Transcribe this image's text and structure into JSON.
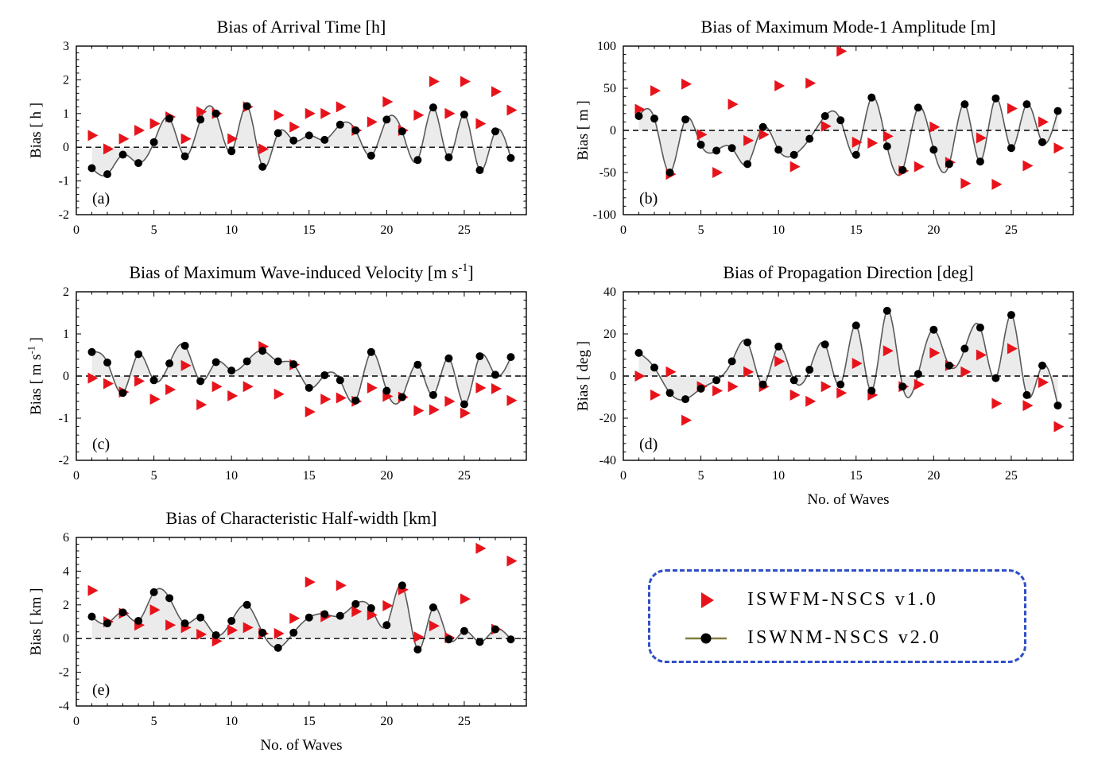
{
  "colors": {
    "v1": "#e8131a",
    "v2": "#000000",
    "curve": "#5a5a5a",
    "fill": "#ebebeb",
    "legend_border": "#2f4fc7",
    "legend_line": "#7f7f3f"
  },
  "legend": {
    "items": [
      {
        "label": "ISWFM-NSCS v1.0",
        "symbol": "red-triangle"
      },
      {
        "label": "ISWNM-NSCS v2.0",
        "symbol": "black-dot-line"
      }
    ]
  },
  "chart_data": [
    {
      "id": "a",
      "type": "scatter",
      "panel_label": "(a)",
      "title_parts": [
        {
          "t": "Bias of Arrival Time [h]"
        }
      ],
      "ylabel": "Bias [ h ]",
      "xlabel": "",
      "xlim": [
        0,
        29
      ],
      "xticks": [
        0,
        5,
        10,
        15,
        20,
        25
      ],
      "ylim": [
        -2,
        3
      ],
      "yticks": [
        -2,
        -1,
        0,
        1,
        2,
        3
      ],
      "x": [
        1,
        2,
        3,
        4,
        5,
        6,
        7,
        8,
        9,
        10,
        11,
        12,
        13,
        14,
        15,
        16,
        17,
        18,
        19,
        20,
        21,
        22,
        23,
        24,
        25,
        26,
        27,
        28
      ],
      "series": [
        {
          "name": "ISWFM-NSCS v1.0",
          "marker": "triangle",
          "values": [
            0.35,
            -0.05,
            0.25,
            0.5,
            0.7,
            0.9,
            0.25,
            1.05,
            1.0,
            0.25,
            1.2,
            -0.05,
            0.95,
            0.6,
            1.0,
            1.0,
            1.2,
            0.5,
            0.75,
            1.35,
            0.5,
            0.95,
            1.95,
            1.0,
            1.95,
            0.7,
            1.65,
            1.1
          ]
        },
        {
          "name": "ISWNM-NSCS v2.0",
          "marker": "dot",
          "values": [
            -0.62,
            -0.8,
            -0.22,
            -0.47,
            0.15,
            0.85,
            -0.27,
            0.82,
            1.0,
            -0.12,
            1.22,
            -0.58,
            0.42,
            0.2,
            0.35,
            0.22,
            0.67,
            0.5,
            -0.25,
            0.82,
            0.47,
            -0.38,
            1.18,
            -0.3,
            0.97,
            -0.68,
            0.47,
            -0.32
          ]
        }
      ]
    },
    {
      "id": "b",
      "type": "scatter",
      "panel_label": "(b)",
      "title_parts": [
        {
          "t": "Bias of Maximum Mode-1 Amplitude [m]"
        }
      ],
      "ylabel": "Bias [ m ]",
      "xlabel": "",
      "xlim": [
        0,
        29
      ],
      "xticks": [
        0,
        5,
        10,
        15,
        20,
        25
      ],
      "ylim": [
        -100,
        100
      ],
      "yticks": [
        -100,
        -50,
        0,
        50,
        100
      ],
      "x": [
        1,
        2,
        3,
        4,
        5,
        6,
        7,
        8,
        9,
        10,
        11,
        12,
        13,
        14,
        15,
        16,
        17,
        18,
        19,
        20,
        21,
        22,
        23,
        24,
        25,
        26,
        27,
        28
      ],
      "series": [
        {
          "name": "ISWFM-NSCS v1.0",
          "marker": "triangle",
          "values": [
            25,
            47,
            -52,
            55,
            -5,
            -50,
            31,
            -12,
            -5,
            53,
            -43,
            56,
            5,
            94,
            -14,
            -15,
            -7,
            -48,
            -43,
            4,
            -38,
            -63,
            -9,
            -64,
            26,
            -42,
            10,
            -21
          ]
        },
        {
          "name": "ISWNM-NSCS v2.0",
          "marker": "dot",
          "values": [
            17,
            14,
            -50,
            13,
            -17,
            -24,
            -21,
            -40,
            4,
            -23,
            -29,
            -10,
            17,
            12,
            -29,
            39,
            -19,
            -47,
            27,
            -23,
            -40,
            31,
            -37,
            38,
            -21,
            31,
            -14,
            23
          ]
        }
      ]
    },
    {
      "id": "c",
      "type": "scatter",
      "panel_label": "(c)",
      "title_parts": [
        {
          "t": "Bias of Maximum Wave-induced Velocity [m s"
        },
        {
          "t": "-1",
          "sup": true
        },
        {
          "t": "]"
        }
      ],
      "ylabel_parts": [
        {
          "t": "Bias [ m s"
        },
        {
          "t": "-1",
          "sup": true
        },
        {
          "t": " ]"
        }
      ],
      "ylabel": "",
      "xlabel": "",
      "xlim": [
        0,
        29
      ],
      "xticks": [
        0,
        5,
        10,
        15,
        20,
        25
      ],
      "ylim": [
        -2,
        2
      ],
      "yticks": [
        -2,
        -1,
        0,
        1,
        2
      ],
      "x": [
        1,
        2,
        3,
        4,
        5,
        6,
        7,
        8,
        9,
        10,
        11,
        12,
        13,
        14,
        15,
        16,
        17,
        18,
        19,
        20,
        21,
        22,
        23,
        24,
        25,
        26,
        27,
        28
      ],
      "series": [
        {
          "name": "ISWFM-NSCS v1.0",
          "marker": "triangle",
          "values": [
            -0.05,
            -0.18,
            -0.38,
            -0.12,
            -0.55,
            -0.32,
            0.25,
            -0.68,
            -0.25,
            -0.47,
            -0.25,
            0.7,
            -0.43,
            0.27,
            -0.85,
            -0.55,
            -0.52,
            -0.6,
            -0.28,
            -0.48,
            -0.5,
            -0.82,
            -0.8,
            -0.6,
            -0.88,
            -0.28,
            -0.3,
            -0.58
          ]
        },
        {
          "name": "ISWNM-NSCS v2.0",
          "marker": "dot",
          "values": [
            0.57,
            0.32,
            -0.4,
            0.52,
            -0.1,
            0.3,
            0.72,
            -0.12,
            0.33,
            0.13,
            0.35,
            0.6,
            0.35,
            0.28,
            -0.28,
            0.02,
            -0.1,
            -0.58,
            0.57,
            -0.35,
            -0.5,
            0.27,
            -0.45,
            0.42,
            -0.67,
            0.47,
            0.03,
            0.45
          ]
        }
      ]
    },
    {
      "id": "d",
      "type": "scatter",
      "panel_label": "(d)",
      "title_parts": [
        {
          "t": "Bias of Propagation Direction [deg]"
        }
      ],
      "ylabel": "Bias [ deg ]",
      "xlabel": "No. of Waves",
      "xlim": [
        0,
        29
      ],
      "xticks": [
        0,
        5,
        10,
        15,
        20,
        25
      ],
      "ylim": [
        -40,
        40
      ],
      "yticks": [
        -40,
        -20,
        0,
        20,
        40
      ],
      "x": [
        1,
        2,
        3,
        4,
        5,
        6,
        7,
        8,
        9,
        10,
        11,
        12,
        13,
        14,
        15,
        16,
        17,
        18,
        19,
        20,
        21,
        22,
        23,
        24,
        25,
        26,
        27,
        28
      ],
      "series": [
        {
          "name": "ISWFM-NSCS v1.0",
          "marker": "triangle",
          "values": [
            0,
            -9,
            2,
            -21,
            -5,
            -7,
            -5,
            2,
            -5,
            7,
            -9,
            -12,
            -5,
            -8,
            6,
            -9,
            12,
            -5,
            -4,
            11,
            5,
            2,
            10,
            -13,
            13,
            -14,
            -3,
            -24
          ]
        },
        {
          "name": "ISWNM-NSCS v2.0",
          "marker": "dot",
          "values": [
            11,
            4,
            -8,
            -11,
            -6,
            -2,
            7,
            16,
            -4,
            14,
            -2,
            3,
            15,
            -4,
            24,
            -7,
            31,
            -5,
            1,
            22,
            5,
            13,
            23,
            -1,
            29,
            -9,
            5,
            -14
          ]
        }
      ]
    },
    {
      "id": "e",
      "type": "scatter",
      "panel_label": "(e)",
      "title_parts": [
        {
          "t": "Bias of Characteristic Half-width [km]"
        }
      ],
      "ylabel": "Bias [ km ]",
      "xlabel": "No. of Waves",
      "xlim": [
        0,
        29
      ],
      "xticks": [
        0,
        5,
        10,
        15,
        20,
        25
      ],
      "ylim": [
        -4,
        6
      ],
      "yticks": [
        -4,
        -2,
        0,
        2,
        4,
        6
      ],
      "x": [
        1,
        2,
        3,
        4,
        5,
        6,
        7,
        8,
        9,
        10,
        11,
        12,
        13,
        14,
        15,
        16,
        17,
        18,
        19,
        20,
        21,
        22,
        23,
        24,
        25,
        26,
        27,
        28
      ],
      "series": [
        {
          "name": "ISWFM-NSCS v1.0",
          "marker": "triangle",
          "values": [
            2.85,
            1.0,
            1.5,
            0.8,
            1.7,
            0.8,
            0.65,
            0.25,
            -0.15,
            0.5,
            0.65,
            0.3,
            0.3,
            1.2,
            3.35,
            1.3,
            3.15,
            1.6,
            1.4,
            1.95,
            2.9,
            0.1,
            0.75,
            0.05,
            2.35,
            5.35,
            0.55,
            4.6
          ]
        },
        {
          "name": "ISWNM-NSCS v2.0",
          "marker": "dot",
          "values": [
            1.3,
            0.9,
            1.55,
            1.05,
            2.75,
            2.4,
            0.9,
            1.25,
            0.2,
            1.05,
            2.0,
            0.35,
            -0.55,
            0.35,
            1.25,
            1.45,
            1.35,
            2.05,
            1.8,
            0.8,
            3.15,
            -0.65,
            1.85,
            -0.05,
            0.45,
            -0.2,
            0.55,
            -0.05
          ]
        }
      ]
    }
  ]
}
